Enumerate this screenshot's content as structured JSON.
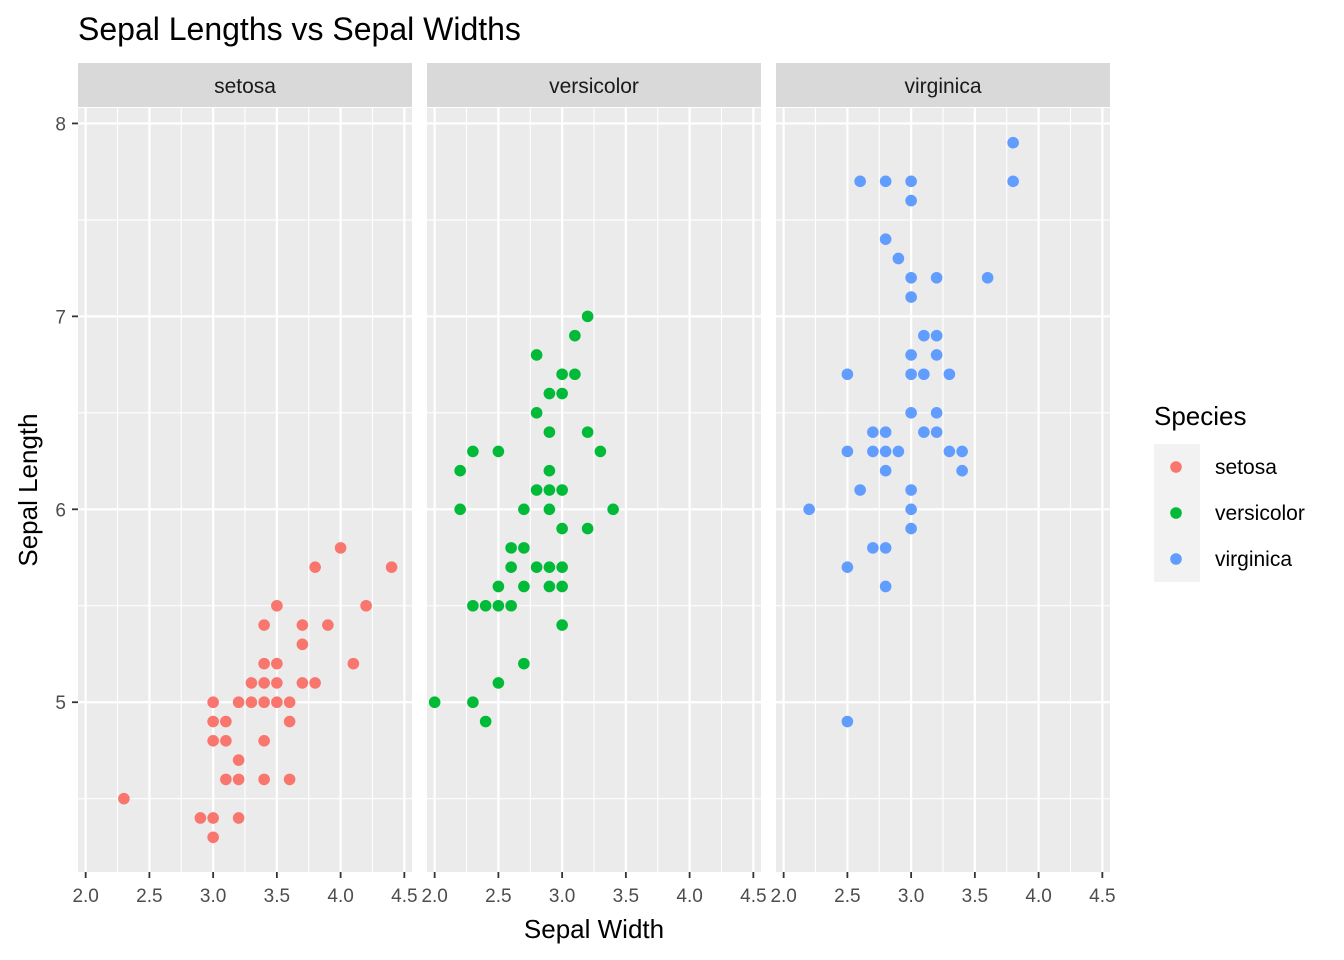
{
  "chart_data": {
    "type": "scatter",
    "title": "Sepal Lengths vs Sepal Widths",
    "xlabel": "Sepal Width",
    "ylabel": "Sepal Length",
    "xlim": [
      1.94,
      4.56
    ],
    "ylim": [
      4.12,
      8.08
    ],
    "x_ticks": [
      2.0,
      2.5,
      3.0,
      3.5,
      4.0,
      4.5
    ],
    "x_tick_labels": [
      "2.0",
      "2.5",
      "3.0",
      "3.5",
      "4.0",
      "4.5"
    ],
    "y_ticks": [
      5,
      6,
      7,
      8
    ],
    "y_tick_labels": [
      "5",
      "6",
      "7",
      "8"
    ],
    "grid": true,
    "facet_by": "Species",
    "legend": {
      "title": "Species",
      "position": "right"
    },
    "series": [
      {
        "name": "setosa",
        "color": "#F8766D",
        "points": [
          [
            2.3,
            4.5
          ],
          [
            2.9,
            4.4
          ],
          [
            3.0,
            4.4
          ],
          [
            3.0,
            4.3
          ],
          [
            3.2,
            4.4
          ],
          [
            3.0,
            4.8
          ],
          [
            3.0,
            4.9
          ],
          [
            3.0,
            5.0
          ],
          [
            3.1,
            4.9
          ],
          [
            3.1,
            4.8
          ],
          [
            3.1,
            4.6
          ],
          [
            3.2,
            4.7
          ],
          [
            3.2,
            4.6
          ],
          [
            3.2,
            5.0
          ],
          [
            3.3,
            5.1
          ],
          [
            3.3,
            5.0
          ],
          [
            3.4,
            4.6
          ],
          [
            3.4,
            4.8
          ],
          [
            3.4,
            5.0
          ],
          [
            3.4,
            5.1
          ],
          [
            3.4,
            5.2
          ],
          [
            3.4,
            5.4
          ],
          [
            3.5,
            5.0
          ],
          [
            3.5,
            5.1
          ],
          [
            3.5,
            5.2
          ],
          [
            3.5,
            5.5
          ],
          [
            3.6,
            4.6
          ],
          [
            3.6,
            4.9
          ],
          [
            3.6,
            5.0
          ],
          [
            3.7,
            5.1
          ],
          [
            3.7,
            5.3
          ],
          [
            3.7,
            5.4
          ],
          [
            3.8,
            5.1
          ],
          [
            3.8,
            5.7
          ],
          [
            3.9,
            5.4
          ],
          [
            4.0,
            5.8
          ],
          [
            4.1,
            5.2
          ],
          [
            4.2,
            5.5
          ],
          [
            4.4,
            5.7
          ]
        ]
      },
      {
        "name": "versicolor",
        "color": "#00BA38",
        "points": [
          [
            2.0,
            5.0
          ],
          [
            2.2,
            6.0
          ],
          [
            2.2,
            6.2
          ],
          [
            2.3,
            5.0
          ],
          [
            2.3,
            5.5
          ],
          [
            2.3,
            6.3
          ],
          [
            2.4,
            4.9
          ],
          [
            2.4,
            5.5
          ],
          [
            2.5,
            5.1
          ],
          [
            2.5,
            5.5
          ],
          [
            2.5,
            5.6
          ],
          [
            2.5,
            6.3
          ],
          [
            2.6,
            5.5
          ],
          [
            2.6,
            5.7
          ],
          [
            2.6,
            5.8
          ],
          [
            2.7,
            5.2
          ],
          [
            2.7,
            5.6
          ],
          [
            2.7,
            5.8
          ],
          [
            2.7,
            6.0
          ],
          [
            2.8,
            5.7
          ],
          [
            2.8,
            6.1
          ],
          [
            2.8,
            6.5
          ],
          [
            2.8,
            6.8
          ],
          [
            2.9,
            5.6
          ],
          [
            2.9,
            5.7
          ],
          [
            2.9,
            6.0
          ],
          [
            2.9,
            6.1
          ],
          [
            2.9,
            6.2
          ],
          [
            2.9,
            6.4
          ],
          [
            2.9,
            6.6
          ],
          [
            3.0,
            5.4
          ],
          [
            3.0,
            5.6
          ],
          [
            3.0,
            5.7
          ],
          [
            3.0,
            5.9
          ],
          [
            3.0,
            6.1
          ],
          [
            3.0,
            6.6
          ],
          [
            3.0,
            6.7
          ],
          [
            3.1,
            6.7
          ],
          [
            3.1,
            6.9
          ],
          [
            3.2,
            5.9
          ],
          [
            3.2,
            6.4
          ],
          [
            3.2,
            7.0
          ],
          [
            3.3,
            6.3
          ],
          [
            3.4,
            6.0
          ]
        ]
      },
      {
        "name": "virginica",
        "color": "#619CFF",
        "points": [
          [
            2.2,
            6.0
          ],
          [
            2.5,
            4.9
          ],
          [
            2.5,
            5.7
          ],
          [
            2.5,
            6.3
          ],
          [
            2.5,
            6.7
          ],
          [
            2.6,
            6.1
          ],
          [
            2.6,
            7.7
          ],
          [
            2.7,
            5.8
          ],
          [
            2.7,
            6.3
          ],
          [
            2.7,
            6.4
          ],
          [
            2.8,
            5.6
          ],
          [
            2.8,
            5.8
          ],
          [
            2.8,
            6.2
          ],
          [
            2.8,
            6.3
          ],
          [
            2.8,
            6.4
          ],
          [
            2.8,
            7.4
          ],
          [
            2.8,
            7.7
          ],
          [
            2.9,
            6.3
          ],
          [
            2.9,
            7.3
          ],
          [
            3.0,
            5.9
          ],
          [
            3.0,
            6.0
          ],
          [
            3.0,
            6.1
          ],
          [
            3.0,
            6.5
          ],
          [
            3.0,
            6.7
          ],
          [
            3.0,
            6.8
          ],
          [
            3.0,
            7.1
          ],
          [
            3.0,
            7.2
          ],
          [
            3.0,
            7.6
          ],
          [
            3.0,
            7.7
          ],
          [
            3.1,
            6.4
          ],
          [
            3.1,
            6.7
          ],
          [
            3.1,
            6.9
          ],
          [
            3.2,
            6.4
          ],
          [
            3.2,
            6.5
          ],
          [
            3.2,
            6.8
          ],
          [
            3.2,
            6.9
          ],
          [
            3.2,
            7.2
          ],
          [
            3.3,
            6.3
          ],
          [
            3.3,
            6.7
          ],
          [
            3.4,
            6.2
          ],
          [
            3.4,
            6.3
          ],
          [
            3.6,
            7.2
          ],
          [
            3.8,
            7.7
          ],
          [
            3.8,
            7.9
          ]
        ]
      }
    ]
  }
}
